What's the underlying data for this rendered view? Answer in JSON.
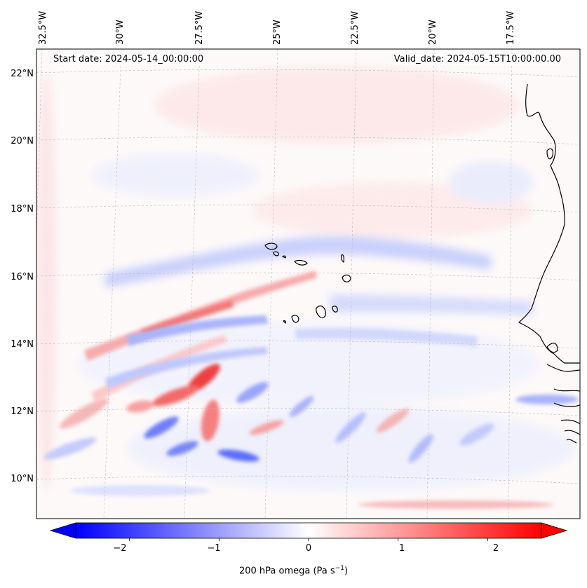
{
  "map": {
    "variable": "200 hPa omega",
    "units": "Pa s",
    "units_exp": "−1",
    "start_date": "Start date: 2024-05-14_00:00:00",
    "valid_date": "Valid_date: 2024-05-15T10:00:00.00",
    "longitude_labels": [
      "32.5°W",
      "30°W",
      "27.5°W",
      "25°W",
      "22.5°W",
      "20°W",
      "17.5°W"
    ],
    "latitude_labels": [
      "22°N",
      "20°N",
      "18°N",
      "16°N",
      "14°N",
      "12°N",
      "10°N"
    ]
  },
  "colorbar": {
    "ticks": [
      "−2",
      "−1",
      "0",
      "1",
      "2"
    ],
    "vmin": -2.6,
    "vmax": 2.6,
    "colors": {
      "negative": "#0000ff",
      "zero": "#ffffff",
      "positive": "#ff0000"
    }
  }
}
